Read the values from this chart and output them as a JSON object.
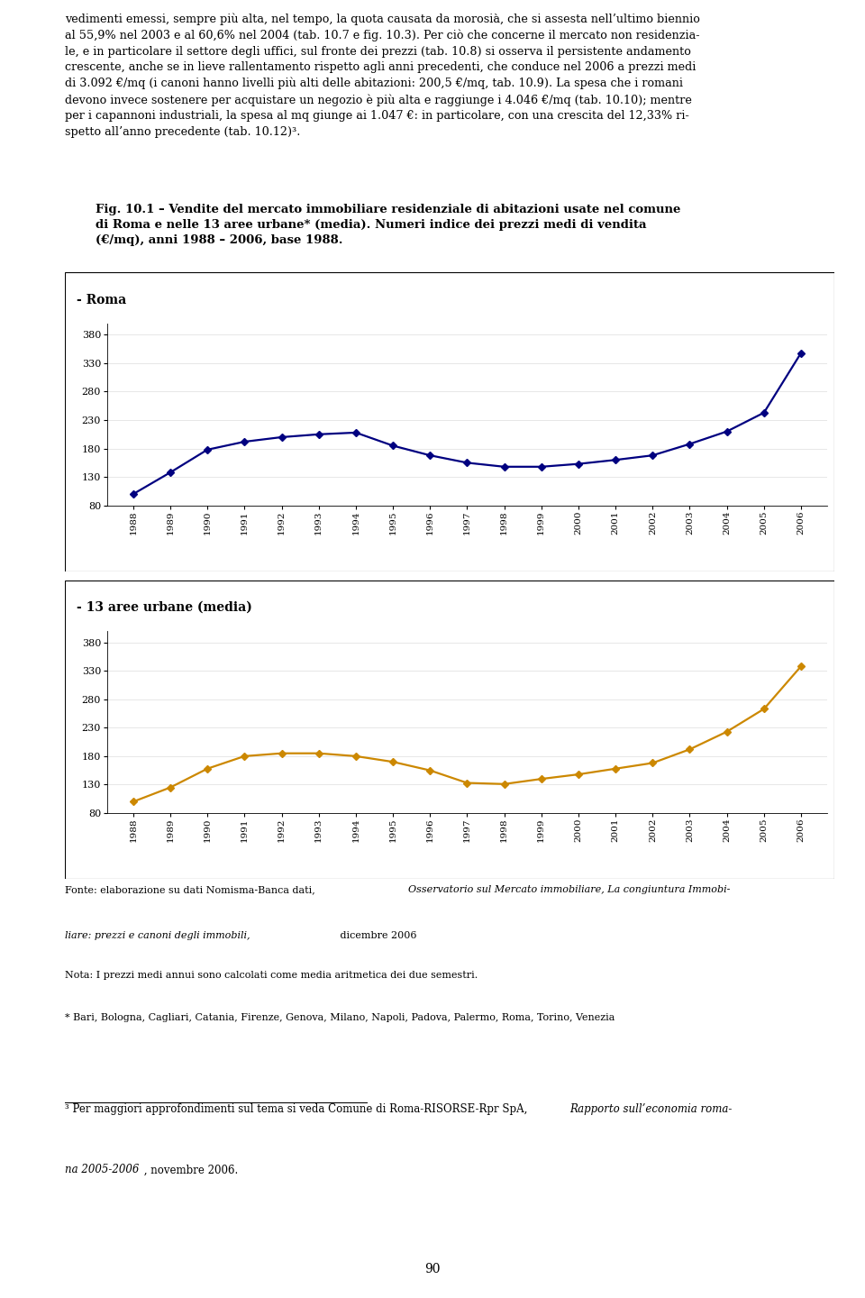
{
  "years": [
    1988,
    1989,
    1990,
    1991,
    1992,
    1993,
    1994,
    1995,
    1996,
    1997,
    1998,
    1999,
    2000,
    2001,
    2002,
    2003,
    2004,
    2005,
    2006
  ],
  "roma_values": [
    100,
    138,
    178,
    192,
    200,
    205,
    208,
    185,
    168,
    155,
    148,
    148,
    153,
    160,
    168,
    188,
    210,
    243,
    348
  ],
  "urbane_values": [
    100,
    125,
    158,
    180,
    185,
    185,
    180,
    170,
    155,
    133,
    131,
    140,
    148,
    158,
    168,
    192,
    223,
    263,
    338
  ],
  "roma_color": "#000080",
  "urbane_color": "#CC8800",
  "line_width": 1.6,
  "marker": "D",
  "marker_size": 4.5,
  "ylim": [
    80,
    400
  ],
  "yticks": [
    80,
    130,
    180,
    230,
    280,
    330,
    380
  ],
  "title_line1": "Fig. 10.1 – Vendite del mercato immobiliare residenziale di abitazioni usate nel comune",
  "title_line2": "di Roma e nelle 13 aree urbane* (media). Numeri indice dei prezzi medi di vendita",
  "title_line3": "(€/mq), anni 1988 – 2006, base 1988.",
  "label_roma": "- Roma",
  "label_urbane": "- 13 aree urbane (media)",
  "footnote_line1a": "Fonte: elaborazione su dati Nomisma-Banca dati, ",
  "footnote_line1b": "Osservatorio sul Mercato immobiliare, La congiuntura Immobi-",
  "footnote_line2a": "liare: prezzi e canoni degli immobili,",
  "footnote_line2b": " dicembre 2006",
  "footnote3": "Nota: I prezzi medi annui sono calcolati come media aritmetica dei due semestri.",
  "footnote4": "* Bari, Bologna, Cagliari, Catania, Firenze, Genova, Milano, Napoli, Padova, Palermo, Roma, Torino, Venezia",
  "bottom_fn_normal": "³ Per maggiori approfondimenti sul tema si veda Comune di Roma-RISORSE-Rpr SpA, ",
  "bottom_fn_italic": "Rapporto sull’economia roma-",
  "bottom_fn_line2_italic": "na 2005-2006",
  "bottom_fn_line2_end": " , novembre 2006.",
  "page_number": "90",
  "top_text_lines": [
    "vedimenti emessi, sempre più alta, nel tempo, la quota causata da morosià, che si assesta nell’ultimo biennio",
    "al 55,9% nel 2003 e al 60,6% nel 2004 (tab. 10.7 e fig. 10.3). Per ciò che concerne il mercato non residenzia-",
    "le, e in particolare il settore degli uffici, sul fronte dei prezzi (tab. 10.8) si osserva il persistente andamento",
    "crescente, anche se in lieve rallentamento rispetto agli anni precedenti, che conduce nel 2006 a prezzi medi",
    "di 3.092 €/mq (i canoni hanno livelli più alti delle abitazioni: 200,5 €/mq, tab. 10.9). La spesa che i romani",
    "devono invece sostenere per acquistare un negozio è più alta e raggiunge i 4.046 €/mq (tab. 10.10); mentre",
    "per i capannoni industriali, la spesa al mq giunge ai 1.047 €: in particolare, con una crescita del 12,33% ri-",
    "spetto all’anno precedente (tab. 10.12)³."
  ],
  "background_color": "#FFFFFF"
}
